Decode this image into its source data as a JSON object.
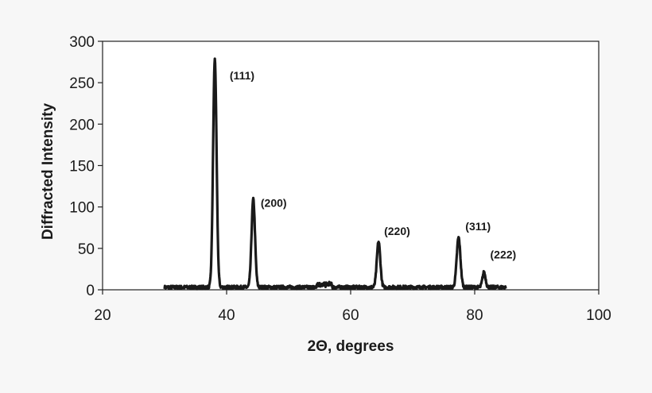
{
  "chart_data": {
    "type": "line",
    "title": "",
    "xlabel": "2Θ, degrees",
    "ylabel": "Diffracted Intensity",
    "xlim": [
      20,
      100
    ],
    "ylim": [
      0,
      300
    ],
    "x_ticks": [
      20,
      40,
      60,
      80,
      100
    ],
    "y_ticks": [
      0,
      50,
      100,
      150,
      200,
      250,
      300
    ],
    "grid": false,
    "legend": "none",
    "line_color": "#1a1a1a",
    "baseline_level": 3,
    "x_range": [
      30,
      85
    ],
    "peaks": [
      {
        "x": 38.1,
        "y": 275,
        "width": 0.28,
        "label": "(111)"
      },
      {
        "x": 44.3,
        "y": 106,
        "width": 0.28,
        "label": "(200)"
      },
      {
        "x": 64.5,
        "y": 55,
        "width": 0.28,
        "label": "(220)"
      },
      {
        "x": 77.4,
        "y": 60,
        "width": 0.3,
        "label": "(311)"
      },
      {
        "x": 81.5,
        "y": 18,
        "width": 0.25,
        "label": "(222)"
      }
    ],
    "annotations": [
      {
        "text": "(111)",
        "x": 40.5,
        "y": 254
      },
      {
        "text": "(200)",
        "x": 45.5,
        "y": 100
      },
      {
        "text": "(220)",
        "x": 65.4,
        "y": 66
      },
      {
        "text": "(311)",
        "x": 78.5,
        "y": 72
      },
      {
        "text": "(222)",
        "x": 82.5,
        "y": 38
      }
    ]
  }
}
